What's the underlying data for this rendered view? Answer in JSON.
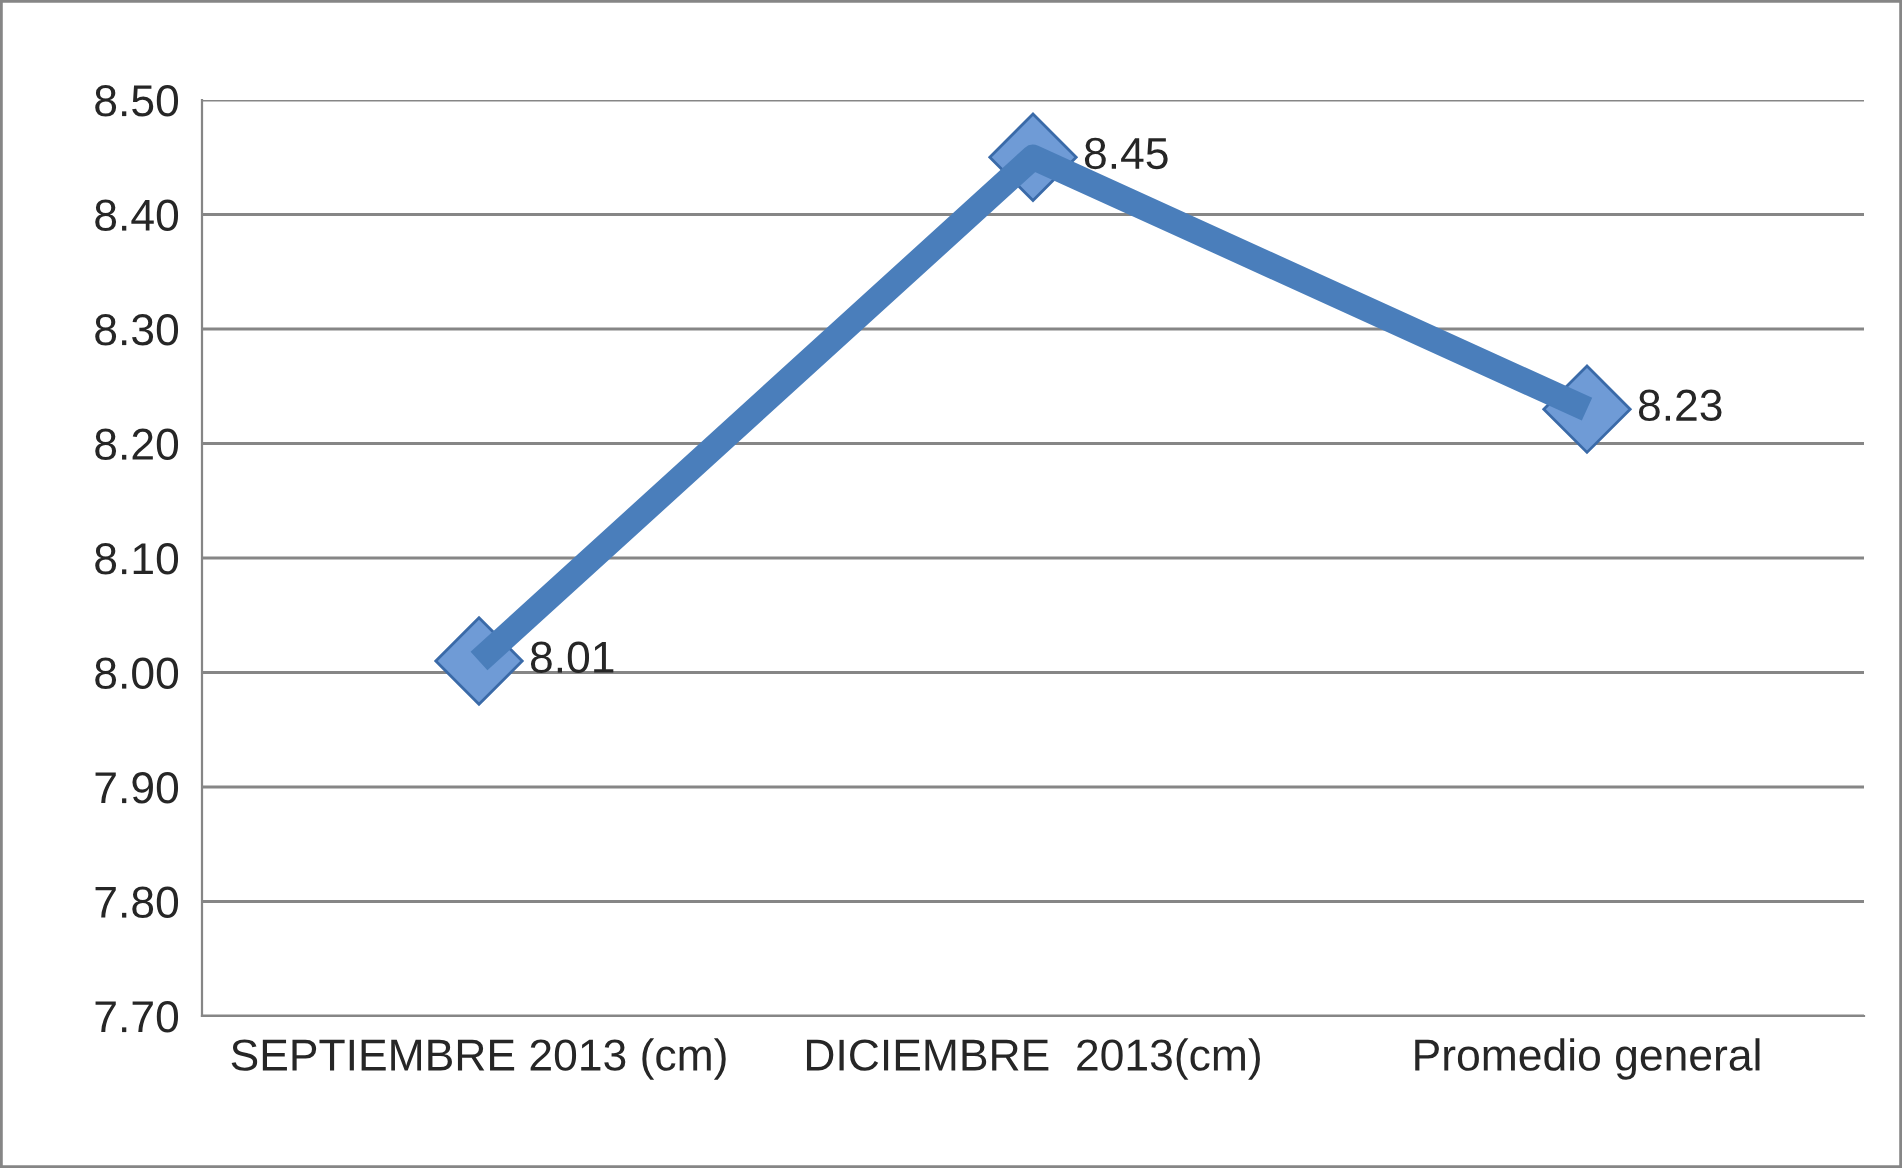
{
  "chart_data": {
    "type": "line",
    "categories": [
      "SEPTIEMBRE 2013 (cm)",
      "DICIEMBRE  2013(cm)",
      "Promedio general"
    ],
    "series": [
      {
        "color": "#4a7ebb",
        "values": [
          8.01,
          8.45,
          8.23
        ]
      }
    ],
    "ylim": [
      7.7,
      8.5
    ],
    "yticks": [
      {
        "value": 7.7,
        "label": "7.70"
      },
      {
        "value": 7.8,
        "label": "7.80"
      },
      {
        "value": 7.9,
        "label": "7.90"
      },
      {
        "value": 8.0,
        "label": "8.00"
      },
      {
        "value": 8.1,
        "label": "8.10"
      },
      {
        "value": 8.2,
        "label": "8.20"
      },
      {
        "value": 8.3,
        "label": "8.30"
      },
      {
        "value": 8.4,
        "label": "8.40"
      },
      {
        "value": 8.5,
        "label": "8.50"
      }
    ],
    "grid": "y",
    "marker": "diamond",
    "line_style": "solid",
    "data_labels": true
  }
}
